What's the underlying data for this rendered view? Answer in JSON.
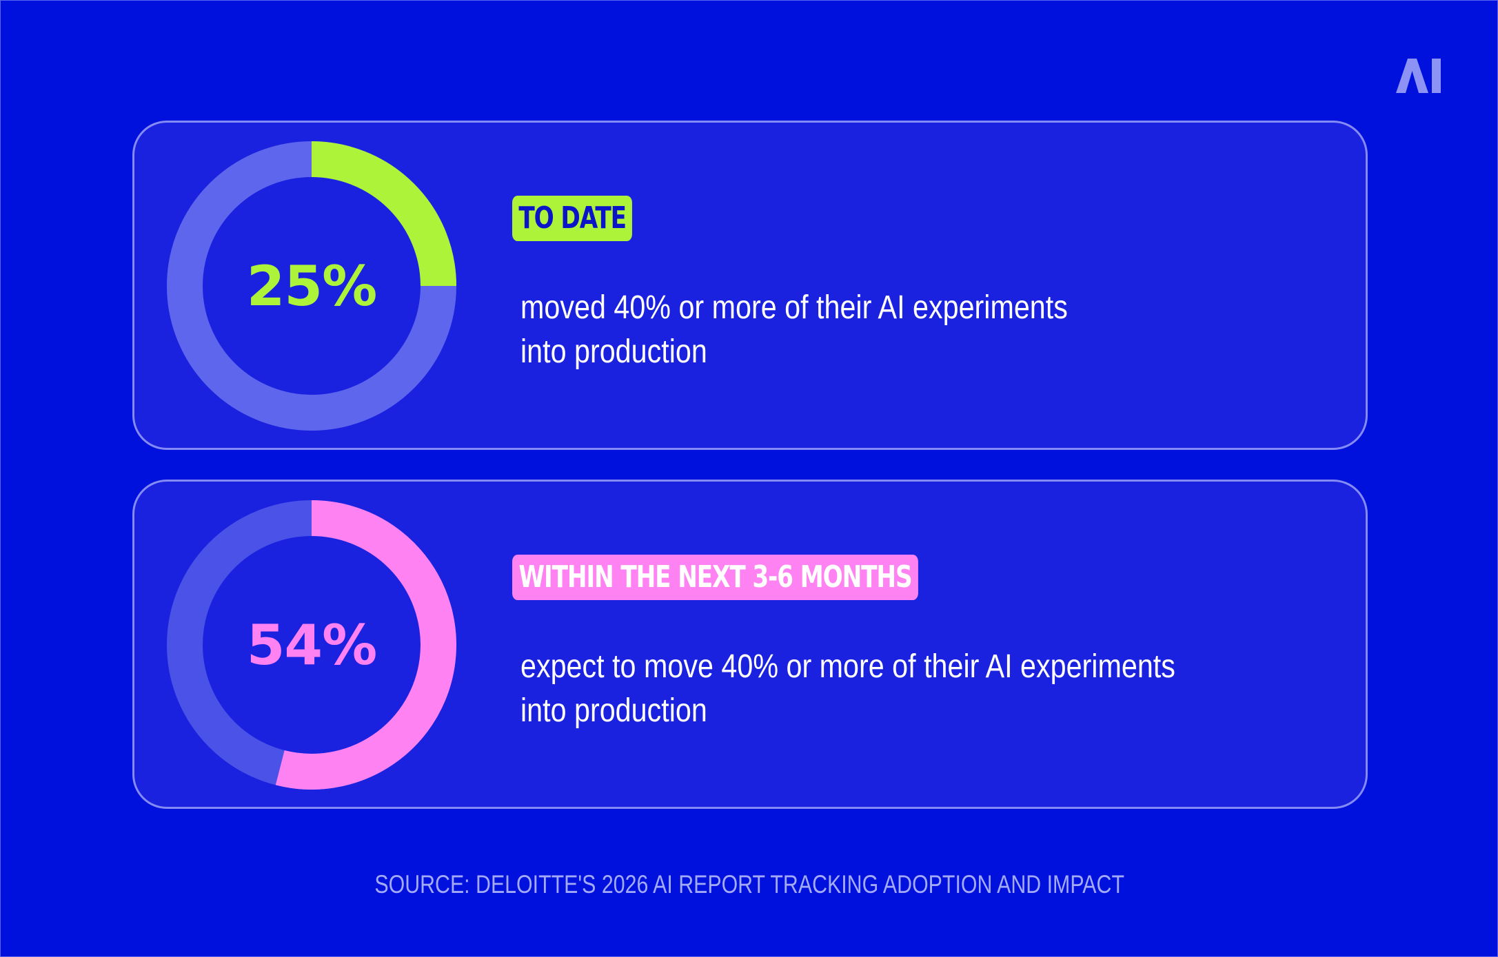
{
  "logo": {
    "text": "AI",
    "icon": "ai-logo-icon"
  },
  "chart_data": [
    {
      "type": "pie",
      "values": [
        25,
        75
      ],
      "value_label": "25%",
      "tag": "TO DATE",
      "description_lines": [
        "moved 40% or more of their AI experiments",
        "into production"
      ],
      "colors": {
        "accent": "#ADF33A",
        "track": "#5E66EE"
      }
    },
    {
      "type": "pie",
      "values": [
        54,
        46
      ],
      "value_label": "54%",
      "tag": "WITHIN THE NEXT 3-6 MONTHS",
      "description_lines": [
        "expect to move 40% or more of their AI experiments",
        "into production"
      ],
      "colors": {
        "accent": "#FF82F2",
        "track": "#4A52E8"
      }
    }
  ],
  "source": "SOURCE: DELOITTE'S 2026 AI REPORT TRACKING ADOPTION AND IMPACT",
  "colors": {
    "background": "#0010DD",
    "card": "#1B22DF"
  }
}
